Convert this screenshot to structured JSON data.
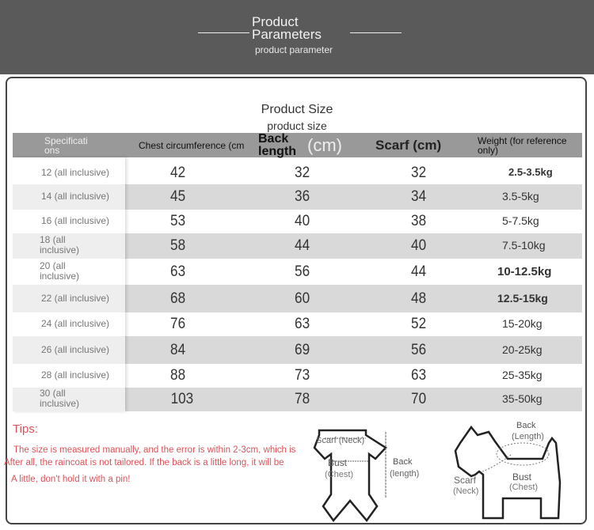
{
  "banner": {
    "title_line1": "Product",
    "title_line2": "Parameters",
    "subtitle": "product  parameter"
  },
  "section": {
    "title": "Product Size",
    "subtitle": "product  size"
  },
  "table": {
    "headers": [
      "Specificati ons",
      "Chest circumference (cm",
      "Back length",
      "(cm)",
      "Scarf (cm)",
      "Weight (for reference only)"
    ],
    "rows": [
      {
        "spec": "12 (all inclusive)",
        "chest": "42",
        "back": "32",
        "scarf": "32",
        "weight": "2.5-3.5kg"
      },
      {
        "spec": "14 (all inclusive)",
        "chest": "45",
        "back": "36",
        "scarf": "34",
        "weight": "3.5-5kg"
      },
      {
        "spec": "16 (all inclusive)",
        "chest": "53",
        "back": "40",
        "scarf": "38",
        "weight": "5-7.5kg"
      },
      {
        "spec": "18 (all inclusive)",
        "chest": "58",
        "back": "44",
        "scarf": "40",
        "weight": "7.5-10kg"
      },
      {
        "spec": "20 (all inclusive)",
        "chest": "63",
        "back": "56",
        "scarf": "44",
        "weight": "10-12.5kg"
      },
      {
        "spec": "22 (all inclusive)",
        "chest": "68",
        "back": "60",
        "scarf": "48",
        "weight": "12.5-15kg"
      },
      {
        "spec": "24 (all inclusive)",
        "chest": "76",
        "back": "63",
        "scarf": "52",
        "weight": "15-20kg"
      },
      {
        "spec": "26 (all inclusive)",
        "chest": "84",
        "back": "69",
        "scarf": "56",
        "weight": "20-25kg"
      },
      {
        "spec": "28 (all inclusive)",
        "chest": "88",
        "back": "73",
        "scarf": "63",
        "weight": "25-35kg"
      },
      {
        "spec": "30 (all inclusive)",
        "chest": "103",
        "back": "78",
        "scarf": "70",
        "weight": "35-50kg"
      }
    ]
  },
  "tips": {
    "title": "Tips:",
    "line1": "The size is measured manually, and the error is within 2-3cm, which is",
    "line2": "After all, the raincoat is not tailored. If the back is a little long, it will be",
    "line3": "A little, don't hold it with a pin!"
  },
  "diagram_coat": {
    "scarf": "Scarf (Neck)",
    "bust": "Bust",
    "chest": "(Chest)",
    "back": "Back",
    "length": "(length)"
  },
  "diagram_dog": {
    "back": "Back",
    "length": "(Length)",
    "scarf": "Scarf",
    "neck": "(Neck)",
    "bust": "Bust",
    "chest": "(Chest)"
  },
  "colors": {
    "banner": "#5a5a5a",
    "header": "#999999",
    "stripe": "#d9d9d9",
    "tips": "#d9545a"
  }
}
